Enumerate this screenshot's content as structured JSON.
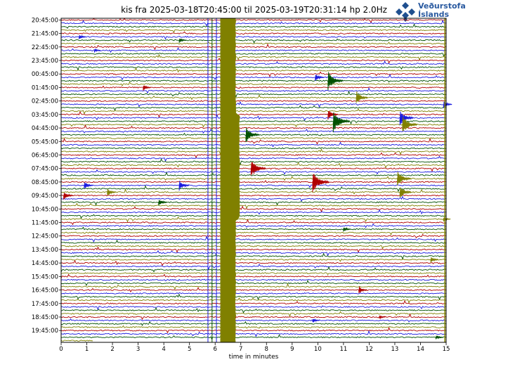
{
  "header": {
    "title": "kis fra 2025-03-18T20:45:00 til 2025-03-19T20:31:14 hp 2.0Hz",
    "logo_line1": "Veðurstofa",
    "logo_line2": "Íslands",
    "logo_icon": "diamond-cluster-icon"
  },
  "chart_data": {
    "type": "line",
    "title": "kis fra 2025-03-18T20:45:00 til 2025-03-19T20:31:14 hp 2.0Hz",
    "xlabel": "time in minutes",
    "ylabel": "",
    "xlim": [
      0,
      15
    ],
    "x_ticks": [
      "0",
      "1",
      "2",
      "3",
      "4",
      "5",
      "6",
      "7",
      "8",
      "9",
      "10",
      "11",
      "12",
      "13",
      "14",
      "15"
    ],
    "y_tick_labels": [
      "20:45:00",
      "21:45:00",
      "22:45:00",
      "23:45:00",
      "00:45:00",
      "01:45:00",
      "02:45:00",
      "03:45:00",
      "04:45:00",
      "05:45:00",
      "06:45:00",
      "07:45:00",
      "08:45:00",
      "09:45:00",
      "10:45:00",
      "11:45:00",
      "12:45:00",
      "13:45:00",
      "14:45:00",
      "15:45:00",
      "16:45:00",
      "17:45:00",
      "18:45:00",
      "19:45:00"
    ],
    "traces_per_hour": 4,
    "trace_colors": [
      "#b00000",
      "#1a1adf",
      "#005000",
      "#808000"
    ],
    "saturated_band": {
      "x_start": 6.2,
      "x_end": 6.8,
      "color": "#808000"
    },
    "events": [
      {
        "trace": 5,
        "x": 0.7,
        "amp": 4
      },
      {
        "trace": 6,
        "x": 4.6,
        "amp": 4
      },
      {
        "trace": 9,
        "x": 1.3,
        "amp": 3
      },
      {
        "trace": 17,
        "x": 9.9,
        "amp": 6
      },
      {
        "trace": 18,
        "x": 10.4,
        "amp": 14
      },
      {
        "trace": 20,
        "x": 3.2,
        "amp": 5
      },
      {
        "trace": 23,
        "x": 11.5,
        "amp": 10
      },
      {
        "trace": 25,
        "x": 14.9,
        "amp": 6
      },
      {
        "trace": 28,
        "x": 10.4,
        "amp": 8
      },
      {
        "trace": 29,
        "x": 13.2,
        "amp": 12
      },
      {
        "trace": 30,
        "x": 10.6,
        "amp": 16
      },
      {
        "trace": 31,
        "x": 13.3,
        "amp": 14
      },
      {
        "trace": 34,
        "x": 7.2,
        "amp": 12
      },
      {
        "trace": 44,
        "x": 7.4,
        "amp": 14
      },
      {
        "trace": 48,
        "x": 9.8,
        "amp": 16
      },
      {
        "trace": 47,
        "x": 13.1,
        "amp": 12
      },
      {
        "trace": 49,
        "x": 4.6,
        "amp": 8
      },
      {
        "trace": 49,
        "x": 0.9,
        "amp": 6
      },
      {
        "trace": 51,
        "x": 13.2,
        "amp": 10
      },
      {
        "trace": 52,
        "x": 0.1,
        "amp": 7
      },
      {
        "trace": 51,
        "x": 1.8,
        "amp": 6
      },
      {
        "trace": 54,
        "x": 3.8,
        "amp": 6
      },
      {
        "trace": 59,
        "x": 14.9,
        "amp": 4
      },
      {
        "trace": 62,
        "x": 11.0,
        "amp": 4
      },
      {
        "trace": 71,
        "x": 14.4,
        "amp": 5
      },
      {
        "trace": 80,
        "x": 11.6,
        "amp": 6
      },
      {
        "trace": 84,
        "x": 6.3,
        "amp": 6
      },
      {
        "trace": 89,
        "x": 9.8,
        "amp": 4
      },
      {
        "trace": 94,
        "x": 14.6,
        "amp": 4
      },
      {
        "trace": 96,
        "x": 12.6,
        "amp": 4
      },
      {
        "trace": 88,
        "x": 12.4,
        "amp": 3
      }
    ],
    "grid": false,
    "legend": "none"
  }
}
